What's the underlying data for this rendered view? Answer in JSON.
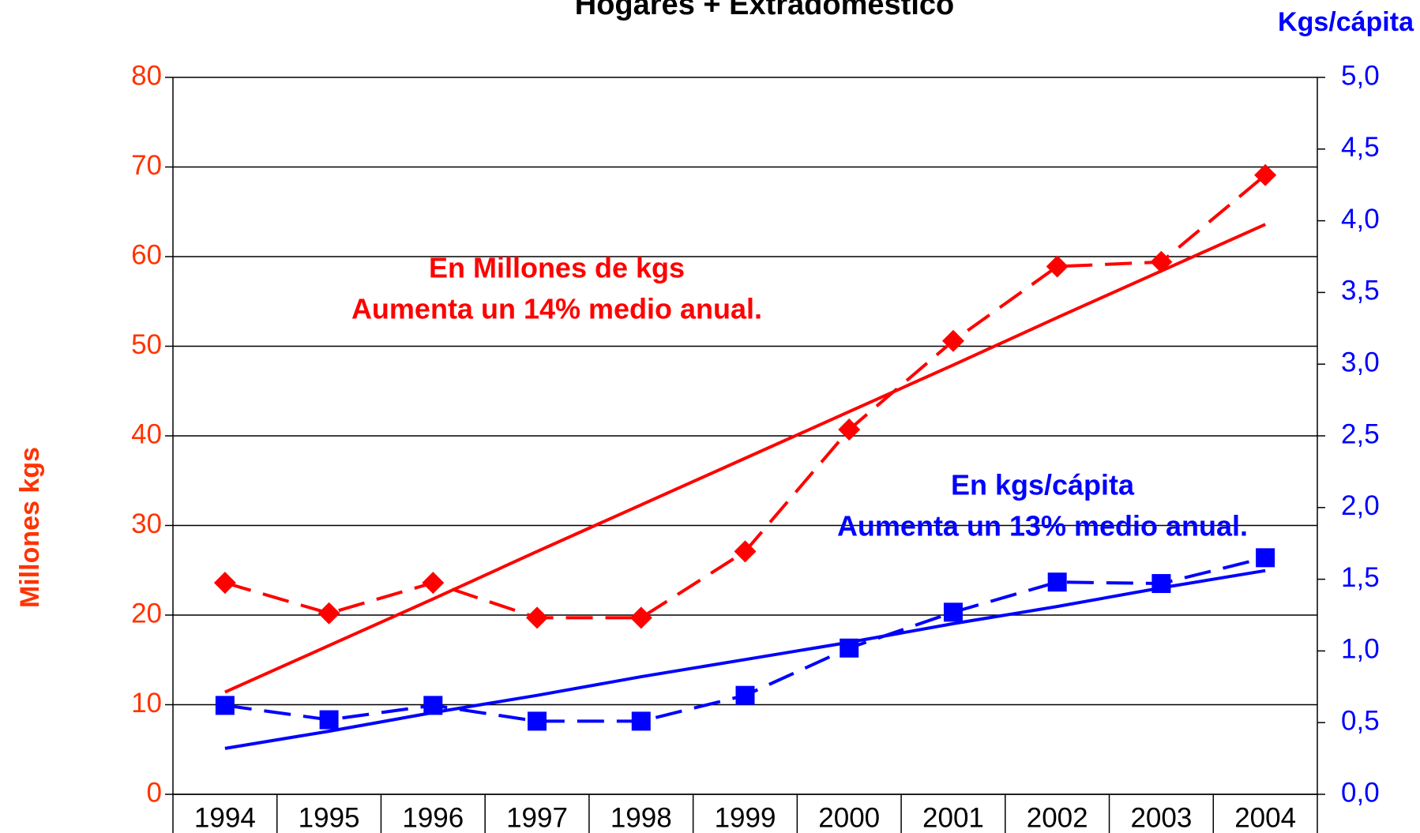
{
  "chart_data": {
    "type": "line",
    "title": "Hogares + Extradomestico",
    "categories": [
      "1994",
      "1995",
      "1996",
      "1997",
      "1998",
      "1999",
      "2000",
      "2001",
      "2002",
      "2003",
      "2004"
    ],
    "ylabel": "Millones kgs",
    "y2label": "Kgs/cápita",
    "ylim": [
      0,
      80
    ],
    "yticks": [
      0,
      10,
      20,
      30,
      40,
      50,
      60,
      70,
      80
    ],
    "y2lim": [
      0,
      5
    ],
    "y2ticks": [
      {
        "value": 0,
        "label": "0,0"
      },
      {
        "value": 0.5,
        "label": "0,5"
      },
      {
        "value": 1,
        "label": "1,0"
      },
      {
        "value": 1.5,
        "label": "1,5"
      },
      {
        "value": 2,
        "label": "2,0"
      },
      {
        "value": 2.5,
        "label": "2,5"
      },
      {
        "value": 3,
        "label": "3,0"
      },
      {
        "value": 3.5,
        "label": "3,5"
      },
      {
        "value": 4,
        "label": "4,0"
      },
      {
        "value": 4.5,
        "label": "4,5"
      },
      {
        "value": 5,
        "label": "5,0"
      }
    ],
    "grid": true,
    "ytick_color": "#ff3300",
    "y2tick_color": "#0000ff",
    "series": [
      {
        "color": "#ff0000",
        "dashed": true,
        "marker": "diamond",
        "values": [
          23.6,
          20.2,
          23.6,
          19.7,
          19.7,
          27.1,
          40.7,
          50.6,
          58.9,
          59.4,
          69.1
        ]
      },
      {
        "color": "#ff0000",
        "dashed": false,
        "values": [
          11.4,
          16.6,
          21.8,
          27.1,
          32.3,
          37.5,
          42.7,
          47.9,
          53.2,
          58.4,
          63.6
        ]
      },
      {
        "color": "#0000ff",
        "dashed": true,
        "marker": "square",
        "axis": "y2",
        "values": [
          0.62,
          0.52,
          0.62,
          0.51,
          0.51,
          0.69,
          1.02,
          1.27,
          1.48,
          1.47,
          1.65
        ]
      },
      {
        "color": "#0000ff",
        "dashed": false,
        "axis": "y2",
        "values": [
          0.32,
          0.44,
          0.57,
          0.69,
          0.82,
          0.94,
          1.06,
          1.19,
          1.31,
          1.44,
          1.56
        ]
      }
    ],
    "annotations": [
      {
        "lines": [
          "En Millones de kgs",
          "Aumenta un 14% medio anual."
        ],
        "color": "#ff0000"
      },
      {
        "lines": [
          "En kgs/cápita",
          "Aumenta un 13% medio anual."
        ],
        "color": "#0000ff"
      }
    ]
  }
}
